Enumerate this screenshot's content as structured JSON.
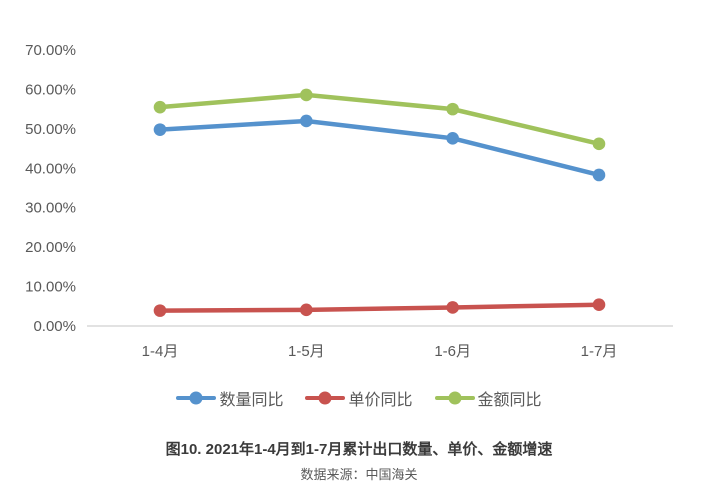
{
  "chart_data": {
    "type": "line",
    "title": "图10. 2021年1-4月到1-7月累计出口数量、单价、金额增速",
    "source": "数据来源：中国海关",
    "categories": [
      "1-4月",
      "1-5月",
      "1-6月",
      "1-7月"
    ],
    "series": [
      {
        "name": "数量同比",
        "color": "#5592CD",
        "values": [
          49.8,
          52.0,
          47.6,
          38.3
        ]
      },
      {
        "name": "单价同比",
        "color": "#C8534F",
        "values": [
          3.9,
          4.1,
          4.7,
          5.4
        ]
      },
      {
        "name": "金额同比",
        "color": "#A0C25C",
        "values": [
          55.5,
          58.6,
          55.0,
          46.2
        ]
      }
    ],
    "y_axis": {
      "min": 0,
      "max": 70,
      "step": 10,
      "tick_suffix": "%",
      "decimals": 2
    },
    "xlabel": "",
    "ylabel": "",
    "grid": false,
    "legend_position": "bottom",
    "axis_line_color": "#D9D9D9",
    "tick_text_color": "#595959"
  }
}
